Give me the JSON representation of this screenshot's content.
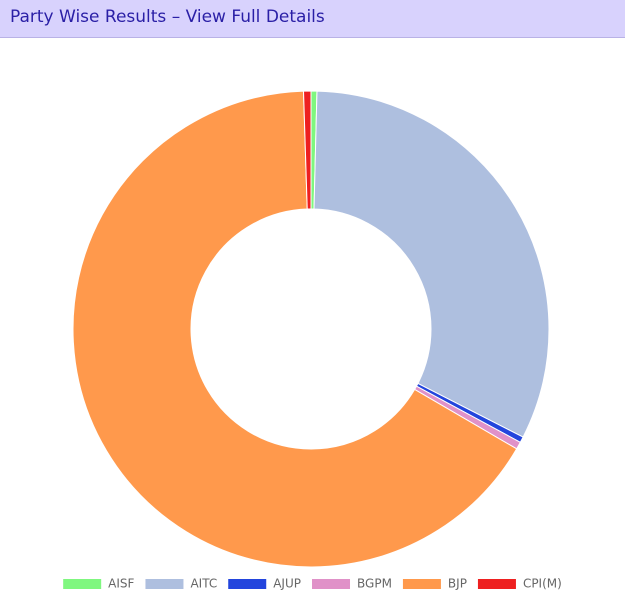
{
  "chart_data": {
    "type": "donut",
    "title": "Party Wise Results – View Full Details",
    "categories": [
      "AISF",
      "AITC",
      "AJUP",
      "BGPM",
      "BJP",
      "CPI(M)"
    ],
    "values": [
      0.4,
      32.1,
      0.4,
      0.5,
      66.1,
      0.5
    ],
    "colors": [
      "#7ff77f",
      "#aebfdf",
      "#2345dd",
      "#e091c8",
      "#ff994c",
      "#ee2020"
    ],
    "legend": "bottom"
  }
}
